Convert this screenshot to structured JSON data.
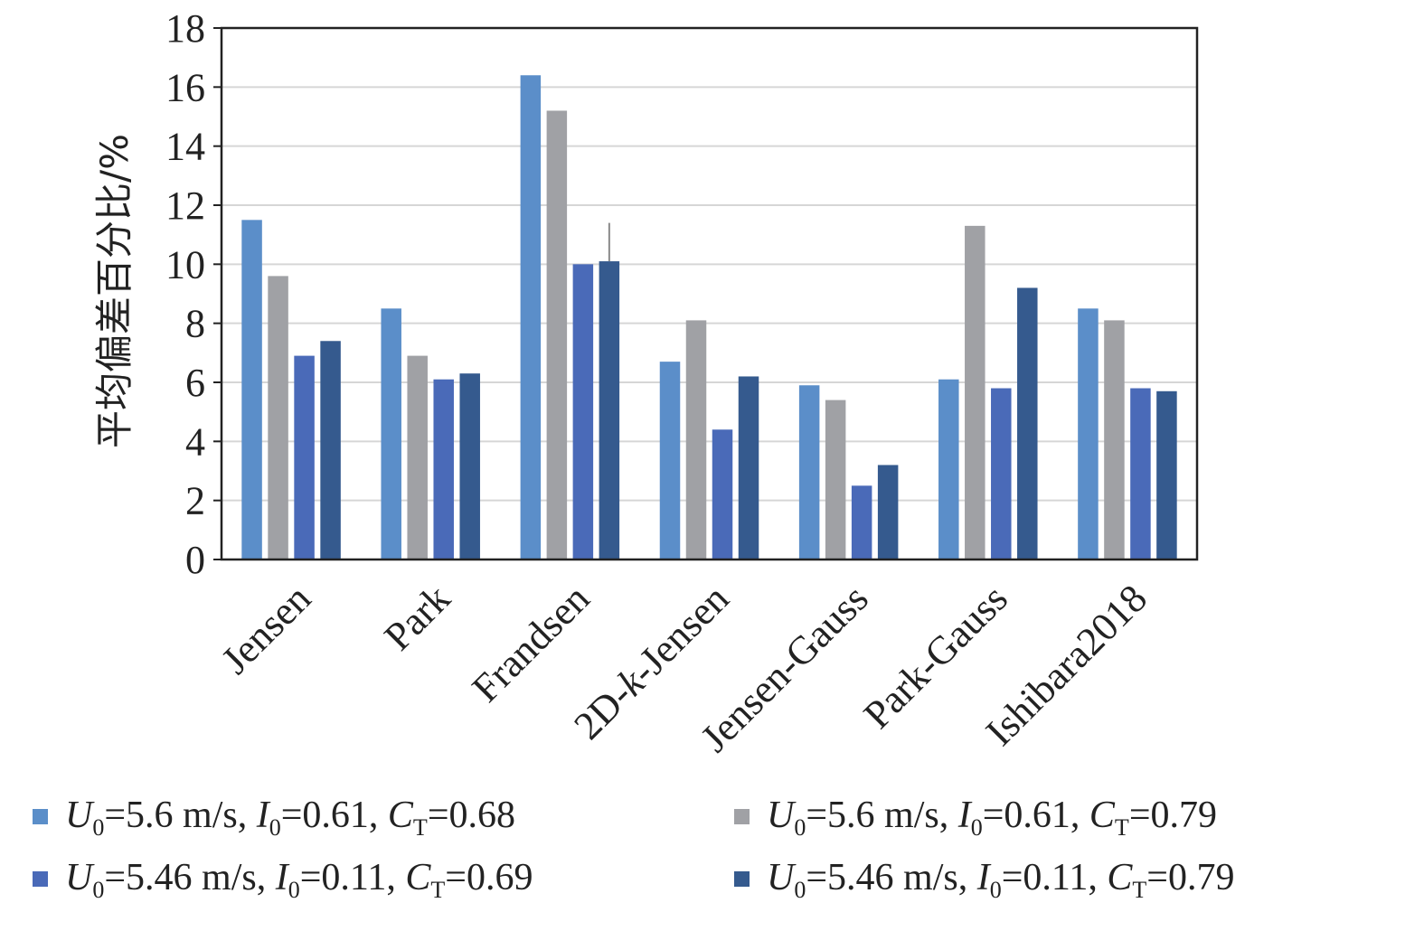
{
  "chart_data": {
    "type": "bar",
    "title": "",
    "xlabel": "",
    "ylabel": "平均偏差百分比/%",
    "ylim": [
      0,
      18
    ],
    "yticks": [
      0,
      2,
      4,
      6,
      8,
      10,
      12,
      14,
      16,
      18
    ],
    "grid": true,
    "legend_position": "bottom",
    "categories": [
      "Jensen",
      "Park",
      "Frandsen",
      "2D-k-Jensen",
      "Jensen-Gauss",
      "Park-Gauss",
      "Ishibara2018"
    ],
    "category_display": [
      [
        {
          "t": "Jensen",
          "i": false
        }
      ],
      [
        {
          "t": "Park",
          "i": false
        }
      ],
      [
        {
          "t": "Frandsen",
          "i": false
        }
      ],
      [
        {
          "t": "2D-",
          "i": false
        },
        {
          "t": "k",
          "i": true
        },
        {
          "t": "-Jensen",
          "i": false
        }
      ],
      [
        {
          "t": "Jensen-Gauss",
          "i": false
        }
      ],
      [
        {
          "t": "Park-Gauss",
          "i": false
        }
      ],
      [
        {
          "t": "Ishibara2018",
          "i": false
        }
      ]
    ],
    "series": [
      {
        "name": "U0=5.6 m/s, I0=0.61, CT=0.68",
        "name_parts": [
          {
            "t": "U",
            "i": true
          },
          {
            "t": "0",
            "sub": true
          },
          {
            "t": "=5.6 m/s, "
          },
          {
            "t": "I",
            "i": true
          },
          {
            "t": "0",
            "sub": true
          },
          {
            "t": "=0.61, "
          },
          {
            "t": "C",
            "i": true
          },
          {
            "t": "T",
            "sub": true
          },
          {
            "t": "=0.68"
          }
        ],
        "color": "#5b8ec9",
        "values": [
          11.5,
          8.5,
          16.4,
          6.7,
          5.9,
          6.1,
          8.5
        ]
      },
      {
        "name": "U0=5.6 m/s, I0=0.61, CT=0.79",
        "name_parts": [
          {
            "t": "U",
            "i": true
          },
          {
            "t": "0",
            "sub": true
          },
          {
            "t": "=5.6 m/s, "
          },
          {
            "t": "I",
            "i": true
          },
          {
            "t": "0",
            "sub": true
          },
          {
            "t": "=0.61, "
          },
          {
            "t": "C",
            "i": true
          },
          {
            "t": "T",
            "sub": true
          },
          {
            "t": "=0.79"
          }
        ],
        "color": "#a0a1a5",
        "values": [
          9.6,
          6.9,
          15.2,
          8.1,
          5.4,
          11.3,
          8.1
        ]
      },
      {
        "name": "U0=5.46 m/s, I0=0.11, CT=0.69",
        "name_parts": [
          {
            "t": "U",
            "i": true
          },
          {
            "t": "0",
            "sub": true
          },
          {
            "t": "=5.46 m/s, "
          },
          {
            "t": "I",
            "i": true
          },
          {
            "t": "0",
            "sub": true
          },
          {
            "t": "=0.11, "
          },
          {
            "t": "C",
            "i": true
          },
          {
            "t": "T",
            "sub": true
          },
          {
            "t": "=0.69"
          }
        ],
        "color": "#4a6ab8",
        "values": [
          6.9,
          6.1,
          10.0,
          4.4,
          2.5,
          5.8,
          5.8
        ]
      },
      {
        "name": "U0=5.46 m/s, I0=0.11, CT=0.79",
        "name_parts": [
          {
            "t": "U",
            "i": true
          },
          {
            "t": "0",
            "sub": true
          },
          {
            "t": "=5.46 m/s, "
          },
          {
            "t": "I",
            "i": true
          },
          {
            "t": "0",
            "sub": true
          },
          {
            "t": "=0.11, "
          },
          {
            "t": "C",
            "i": true
          },
          {
            "t": "T",
            "sub": true
          },
          {
            "t": "=0.79"
          }
        ],
        "color": "#355a8e",
        "values": [
          7.4,
          6.3,
          10.1,
          6.2,
          3.2,
          9.2,
          5.7
        ]
      }
    ],
    "error_bars": [
      {
        "series": 3,
        "category": 2,
        "high": 11.4
      }
    ]
  }
}
